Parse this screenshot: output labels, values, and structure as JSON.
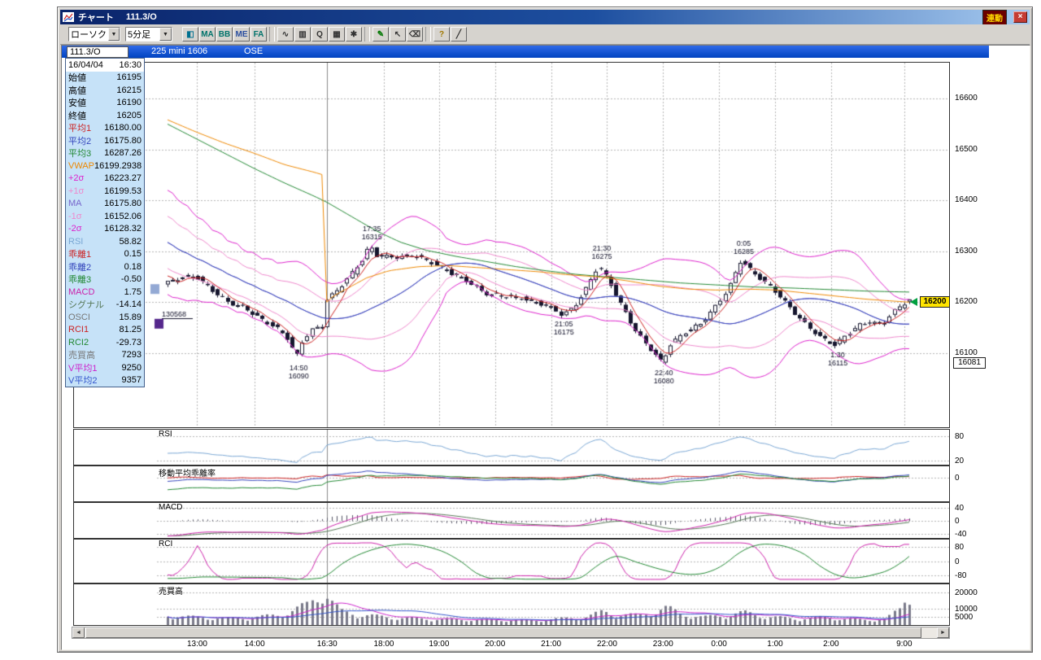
{
  "window": {
    "title": "チャート",
    "title_code": "111.3/O",
    "linked_badge": "連動",
    "close": "×"
  },
  "toolbar": {
    "style_select": {
      "value": "ローソク",
      "arrow": "▼"
    },
    "interval_select": {
      "value": "5分足",
      "arrow": "▼"
    },
    "buttons": [
      {
        "name": "chart-pattern-button",
        "label": "◧",
        "color": "#007090"
      },
      {
        "name": "moving-average-button",
        "label": "MA",
        "color": "#00736b"
      },
      {
        "name": "bollinger-band-button",
        "label": "BB",
        "color": "#00736b"
      },
      {
        "name": "envelope-button",
        "label": "ME",
        "color": "#2a4ea0"
      },
      {
        "name": "fa-indicator-button",
        "label": "FA",
        "color": "#00736b"
      },
      {
        "sep": true
      },
      {
        "name": "line-chart-button",
        "label": "∿",
        "color": "#333333"
      },
      {
        "name": "bar-chart-button",
        "label": "▥",
        "color": "#333333"
      },
      {
        "name": "zoom-button",
        "label": "Q",
        "color": "#333333"
      },
      {
        "name": "grid-button",
        "label": "▦",
        "color": "#333333"
      },
      {
        "name": "indicator-settings-button",
        "label": "✱",
        "color": "#333333"
      },
      {
        "sep": true
      },
      {
        "name": "draw-pencil-button",
        "label": "✎",
        "color": "#007700"
      },
      {
        "name": "cursor-button",
        "label": "↖",
        "color": "#333333"
      },
      {
        "name": "eraser-button",
        "label": "⌫",
        "color": "#333333"
      },
      {
        "sep": true
      },
      {
        "name": "search-help-button",
        "label": "?",
        "color": "#a07800"
      },
      {
        "name": "trendline-button",
        "label": "╱",
        "color": "#333333"
      }
    ]
  },
  "instrument": {
    "code": "111.3/O",
    "name": "225 mini 1606",
    "exchange": "OSE"
  },
  "quote_panel": {
    "date": "16/04/04",
    "time": "16:30",
    "rows": [
      {
        "label": "始値",
        "value": "16195",
        "color": "#000000"
      },
      {
        "label": "高値",
        "value": "16215",
        "color": "#000000"
      },
      {
        "label": "安値",
        "value": "16190",
        "color": "#000000"
      },
      {
        "label": "終値",
        "value": "16205",
        "color": "#000000"
      },
      {
        "label": "平均1",
        "value": "16180.00",
        "color": "#cc2222"
      },
      {
        "label": "平均2",
        "value": "16175.80",
        "color": "#3344bb"
      },
      {
        "label": "平均3",
        "value": "16287.26",
        "color": "#228833"
      },
      {
        "label": "VWAP",
        "value": "16199.2938",
        "color": "#ee8800"
      },
      {
        "label": "+2σ",
        "value": "16223.27",
        "color": "#dd22cc"
      },
      {
        "label": "+1σ",
        "value": "16199.53",
        "color": "#ee88cc"
      },
      {
        "label": "MA",
        "value": "16175.80",
        "color": "#7766cc"
      },
      {
        "label": "-1σ",
        "value": "16152.06",
        "color": "#ee88cc"
      },
      {
        "label": "-2σ",
        "value": "16128.32",
        "color": "#dd22cc"
      },
      {
        "label": "RSI",
        "value": "58.82",
        "color": "#7aa7d4"
      },
      {
        "label": "乖離1",
        "value": "0.15",
        "color": "#cc2222"
      },
      {
        "label": "乖離2",
        "value": "0.18",
        "color": "#3344bb"
      },
      {
        "label": "乖離3",
        "value": "-0.50",
        "color": "#228833"
      },
      {
        "label": "MACD",
        "value": "1.75",
        "color": "#cc22aa"
      },
      {
        "label": "シグナル",
        "value": "-14.14",
        "color": "#557755"
      },
      {
        "label": "OSCI",
        "value": "15.89",
        "color": "#777777"
      },
      {
        "label": "RCI1",
        "value": "81.25",
        "color": "#cc2222"
      },
      {
        "label": "RCI2",
        "value": "-29.73",
        "color": "#228833"
      },
      {
        "label": "売買高",
        "value": "7293",
        "color": "#777777"
      },
      {
        "label": "V平均1",
        "value": "9250",
        "color": "#cc22cc"
      },
      {
        "label": "V平均2",
        "value": "9357",
        "color": "#3355cc"
      }
    ]
  },
  "scrollbar": {
    "left_arrow": "◄",
    "right_arrow": "►"
  },
  "chart_data": {
    "type": "candlestick",
    "instrument": "225 mini 1606",
    "exchange": "OSE",
    "interval": "5分足",
    "date": "16/04/04",
    "ylim": [
      15955,
      16670
    ],
    "y_ticks": [
      16600,
      16500,
      16400,
      16300,
      16200,
      16100
    ],
    "x_ticks": [
      {
        "label": "13:00",
        "f": 0.043
      },
      {
        "label": "14:00",
        "f": 0.12
      },
      {
        "label": "16:30",
        "f": 0.217
      },
      {
        "label": "18:00",
        "f": 0.293
      },
      {
        "label": "19:00",
        "f": 0.367
      },
      {
        "label": "20:00",
        "f": 0.442
      },
      {
        "label": "21:00",
        "f": 0.517
      },
      {
        "label": "22:00",
        "f": 0.592
      },
      {
        "label": "23:00",
        "f": 0.667
      },
      {
        "label": "0:00",
        "f": 0.742
      },
      {
        "label": "1:00",
        "f": 0.817
      },
      {
        "label": "2:00",
        "f": 0.892
      },
      {
        "label": "9:00",
        "f": 0.99
      }
    ],
    "cursor_f": 0.217,
    "num_bars": 150,
    "price_path": [
      [
        0,
        16235
      ],
      [
        0.022,
        16248
      ],
      [
        0.043,
        16252
      ],
      [
        0.065,
        16225
      ],
      [
        0.087,
        16200
      ],
      [
        0.109,
        16190
      ],
      [
        0.13,
        16168
      ],
      [
        0.152,
        16150
      ],
      [
        0.168,
        16128
      ],
      [
        0.179,
        16092
      ],
      [
        0.188,
        16128
      ],
      [
        0.201,
        16148
      ],
      [
        0.213,
        16152
      ],
      [
        0.219,
        16205
      ],
      [
        0.23,
        16218
      ],
      [
        0.248,
        16248
      ],
      [
        0.266,
        16282
      ],
      [
        0.277,
        16312
      ],
      [
        0.286,
        16292
      ],
      [
        0.31,
        16288
      ],
      [
        0.336,
        16292
      ],
      [
        0.36,
        16278
      ],
      [
        0.385,
        16258
      ],
      [
        0.41,
        16240
      ],
      [
        0.43,
        16218
      ],
      [
        0.455,
        16212
      ],
      [
        0.48,
        16208
      ],
      [
        0.505,
        16198
      ],
      [
        0.522,
        16188
      ],
      [
        0.535,
        16175
      ],
      [
        0.55,
        16190
      ],
      [
        0.565,
        16222
      ],
      [
        0.583,
        16272
      ],
      [
        0.595,
        16248
      ],
      [
        0.615,
        16192
      ],
      [
        0.635,
        16140
      ],
      [
        0.655,
        16105
      ],
      [
        0.668,
        16082
      ],
      [
        0.68,
        16118
      ],
      [
        0.7,
        16142
      ],
      [
        0.72,
        16158
      ],
      [
        0.738,
        16188
      ],
      [
        0.758,
        16228
      ],
      [
        0.774,
        16283
      ],
      [
        0.788,
        16262
      ],
      [
        0.806,
        16240
      ],
      [
        0.824,
        16216
      ],
      [
        0.842,
        16186
      ],
      [
        0.86,
        16158
      ],
      [
        0.88,
        16132
      ],
      [
        0.9,
        16116
      ],
      [
        0.915,
        16136
      ],
      [
        0.932,
        16155
      ],
      [
        0.948,
        16162
      ],
      [
        0.962,
        16155
      ],
      [
        0.976,
        16178
      ],
      [
        0.99,
        16196
      ],
      [
        1,
        16205
      ]
    ],
    "annotations": [
      {
        "time": "17:35",
        "value": "16315",
        "f": 0.277,
        "price": 16315,
        "position": "above"
      },
      {
        "time": "21:30",
        "value": "16275",
        "f": 0.585,
        "price": 16277,
        "position": "above"
      },
      {
        "time": "0:05",
        "value": "16285",
        "f": 0.775,
        "price": 16287,
        "position": "above"
      },
      {
        "time": "21:05",
        "value": "16175",
        "f": 0.534,
        "price": 16173,
        "position": "below"
      },
      {
        "time": "14:50",
        "value": "16090",
        "f": 0.179,
        "price": 16088,
        "position": "below"
      },
      {
        "time": "22:40",
        "value": "16080",
        "f": 0.668,
        "price": 16078,
        "position": "below"
      },
      {
        "time": "1:30",
        "value": "16115",
        "f": 0.901,
        "price": 16113,
        "position": "below"
      }
    ],
    "session_volume": {
      "label": "130568",
      "price": 16172
    },
    "left_markers": [
      {
        "color": "#93a9d4",
        "price": 16226
      },
      {
        "color": "#55278c",
        "price": 16158
      }
    ],
    "current_price": {
      "label": "16200",
      "value": 16200,
      "color": "#ffe400",
      "arrow_color": "#00a040"
    },
    "prev_close": {
      "label": "16081",
      "value": 16081
    },
    "candle_colors": {
      "up": "#ffffff",
      "down": "#16162e",
      "wick": "#16162e"
    },
    "overlays": {
      "ma1": {
        "label": "平均1",
        "period": 5,
        "color": "#cc2222"
      },
      "ma2": {
        "label": "平均2",
        "period": 25,
        "color": "#3344bb"
      },
      "ma3": {
        "label": "平均3",
        "color": "#228833",
        "anchors": [
          [
            0,
            16552
          ],
          [
            0.04,
            16522
          ],
          [
            0.08,
            16492
          ],
          [
            0.12,
            16462
          ],
          [
            0.16,
            16434
          ],
          [
            0.2,
            16408
          ],
          [
            0.217,
            16396
          ],
          [
            0.25,
            16368
          ],
          [
            0.283,
            16340
          ],
          [
            0.315,
            16318
          ],
          [
            0.35,
            16302
          ],
          [
            0.39,
            16290
          ],
          [
            0.43,
            16280
          ],
          [
            0.47,
            16270
          ],
          [
            0.51,
            16262
          ],
          [
            0.55,
            16255
          ],
          [
            0.59,
            16250
          ],
          [
            0.64,
            16244
          ],
          [
            0.69,
            16238
          ],
          [
            0.74,
            16234
          ],
          [
            0.79,
            16230
          ],
          [
            0.84,
            16228
          ],
          [
            0.89,
            16225
          ],
          [
            0.94,
            16222
          ],
          [
            1,
            16220
          ]
        ]
      },
      "vwap": {
        "label": "VWAP",
        "color": "#ee8800",
        "anchors": [
          [
            0,
            16560
          ],
          [
            0.04,
            16535
          ],
          [
            0.08,
            16512
          ],
          [
            0.12,
            16492
          ],
          [
            0.16,
            16470
          ],
          [
            0.2,
            16455
          ],
          [
            0.216,
            16448
          ],
          [
            0.2165,
            16200
          ],
          [
            0.225,
            16212
          ],
          [
            0.245,
            16228
          ],
          [
            0.27,
            16248
          ],
          [
            0.3,
            16262
          ],
          [
            0.34,
            16270
          ],
          [
            0.38,
            16272
          ],
          [
            0.42,
            16268
          ],
          [
            0.46,
            16264
          ],
          [
            0.5,
            16260
          ],
          [
            0.54,
            16254
          ],
          [
            0.58,
            16250
          ],
          [
            0.62,
            16242
          ],
          [
            0.66,
            16232
          ],
          [
            0.7,
            16226
          ],
          [
            0.74,
            16224
          ],
          [
            0.78,
            16226
          ],
          [
            0.82,
            16224
          ],
          [
            0.86,
            16218
          ],
          [
            0.9,
            16212
          ],
          [
            0.94,
            16206
          ],
          [
            1,
            16200
          ]
        ]
      },
      "boll": {
        "period": 25,
        "center_color": "#7766cc",
        "s1_color": "#ee88cc",
        "s2_color": "#dd22cc"
      }
    },
    "subpanels": [
      {
        "id": "rsi",
        "name": "RSI",
        "indicator": "rsi",
        "period": 14,
        "color": "#7aa7d4",
        "ticks": [
          80,
          20
        ],
        "range": [
          10,
          95
        ]
      },
      {
        "id": "deviation",
        "name": "移動平均乖離率",
        "indicator": "deviation",
        "periods": [
          5,
          25,
          75
        ],
        "colors": [
          "#cc2222",
          "#3344bb",
          "#228833"
        ],
        "ticks": [
          0
        ],
        "range": [
          -2.8,
          1.3
        ]
      },
      {
        "id": "macd",
        "name": "MACD",
        "indicator": "macd",
        "periods": [
          12,
          26,
          9
        ],
        "colors": {
          "macd": "#cc22aa",
          "signal": "#557755",
          "hist": "#555566"
        },
        "ticks": [
          40,
          0,
          -40
        ],
        "range": [
          -52,
          56
        ]
      },
      {
        "id": "rci",
        "name": "RCI",
        "indicator": "rci",
        "periods": [
          9,
          26
        ],
        "colors": [
          "#cc22aa",
          "#228833"
        ],
        "ticks": [
          80,
          0,
          -80
        ],
        "range": [
          -118,
          118
        ]
      },
      {
        "id": "volume",
        "name": "売買高",
        "indicator": "volume",
        "bar_color": "#7a7a8a",
        "ma_colors": [
          "#cc22cc",
          "#3355cc"
        ],
        "ticks": [
          20000,
          10000,
          5000
        ],
        "range": [
          0,
          25000
        ],
        "anchors": [
          [
            0,
            5200
          ],
          [
            0.04,
            4200
          ],
          [
            0.08,
            3600
          ],
          [
            0.12,
            4200
          ],
          [
            0.15,
            5400
          ],
          [
            0.17,
            7800
          ],
          [
            0.19,
            11000
          ],
          [
            0.205,
            16500
          ],
          [
            0.213,
            19500
          ],
          [
            0.219,
            14000
          ],
          [
            0.235,
            7500
          ],
          [
            0.26,
            5600
          ],
          [
            0.3,
            4200
          ],
          [
            0.35,
            3400
          ],
          [
            0.4,
            3000
          ],
          [
            0.45,
            2700
          ],
          [
            0.5,
            2600
          ],
          [
            0.535,
            3600
          ],
          [
            0.565,
            4400
          ],
          [
            0.585,
            7200
          ],
          [
            0.605,
            5800
          ],
          [
            0.635,
            5200
          ],
          [
            0.66,
            8200
          ],
          [
            0.672,
            9400
          ],
          [
            0.69,
            6200
          ],
          [
            0.72,
            4200
          ],
          [
            0.745,
            5200
          ],
          [
            0.775,
            6800
          ],
          [
            0.805,
            4600
          ],
          [
            0.845,
            3400
          ],
          [
            0.88,
            4200
          ],
          [
            0.91,
            3400
          ],
          [
            0.94,
            2700
          ],
          [
            0.965,
            3200
          ],
          [
            0.985,
            9000
          ],
          [
            0.995,
            19000
          ],
          [
            1,
            15500
          ]
        ]
      }
    ]
  }
}
